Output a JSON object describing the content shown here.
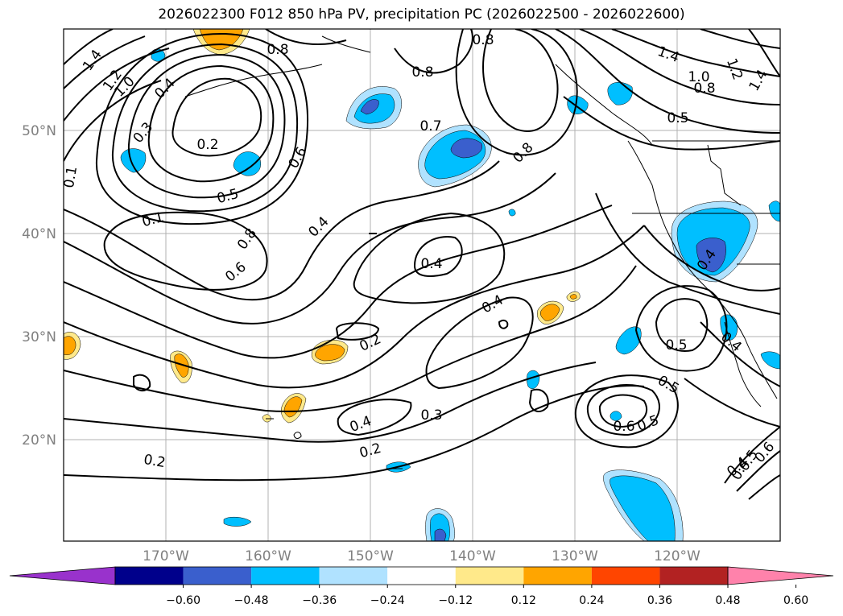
{
  "title": "2026022300 F012 850 hPa PV, precipitation PC (2026022500 - 2026022600)",
  "map": {
    "lat_labels": [
      "50°N",
      "40°N",
      "30°N",
      "20°N"
    ],
    "lon_labels": [
      "170°W",
      "160°W",
      "150°W",
      "140°W",
      "130°W",
      "120°W"
    ],
    "contour_labels": [
      "1.4",
      "1.2",
      "1.0",
      "0.4",
      "0.3",
      "0.2",
      "0.8",
      "0.8",
      "0.8",
      "1.4",
      "1.0",
      "0.8",
      "1.2",
      "1.4",
      "0.5",
      "0.7",
      "0.8",
      "0.6",
      "0.5",
      "0.1",
      "0.8",
      "0.6",
      "0.4",
      "0.4",
      "0.4",
      "0.2",
      "0.4",
      "0.3",
      "0.2",
      "0.2",
      "0.4",
      "0.5",
      "0.5",
      "0.4",
      "0.6",
      "0.5",
      "0.4",
      "0.5",
      "0.6",
      "0.1",
      "0.4"
    ]
  },
  "colorbar": {
    "colors": [
      "#9932CC",
      "#00008B",
      "#3A5FCD",
      "#00BFFF",
      "#B0E2FF",
      "#FFFFFF",
      "#FFE98A",
      "#FFA500",
      "#FF4500",
      "#B22222",
      "#FF82AB"
    ],
    "ticks": [
      "−0.60",
      "−0.48",
      "−0.36",
      "−0.24",
      "−0.12",
      "0.12",
      "0.24",
      "0.36",
      "0.48",
      "0.60"
    ]
  }
}
